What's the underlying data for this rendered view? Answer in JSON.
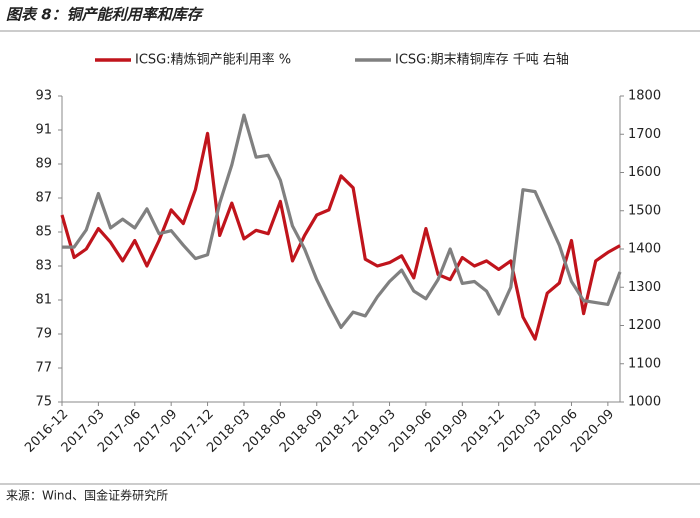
{
  "chart_data": {
    "type": "line",
    "title": "图表 8：铜产能利用率和库存",
    "source": "来源：Wind、国金证券研究所",
    "categories": [
      "2016-12",
      null,
      null,
      "2017-03",
      null,
      null,
      "2017-06",
      null,
      null,
      "2017-09",
      null,
      null,
      "2017-12",
      null,
      null,
      "2018-03",
      null,
      null,
      "2018-06",
      null,
      null,
      "2018-09",
      null,
      null,
      "2018-12",
      null,
      null,
      "2019-03",
      null,
      null,
      "2019-06",
      null,
      null,
      "2019-09",
      null,
      null,
      "2019-12",
      null,
      null,
      "2020-03",
      null,
      null,
      "2020-06",
      null,
      null,
      "2020-09",
      null
    ],
    "series": [
      {
        "name": "ICSG:精炼铜产能利用率 %",
        "color": "#c0141c",
        "values": [
          86.0,
          83.5,
          84.0,
          85.2,
          84.4,
          83.3,
          84.5,
          83.0,
          84.5,
          86.3,
          85.5,
          87.5,
          90.8,
          84.8,
          86.7,
          84.6,
          85.1,
          84.9,
          86.8,
          83.3,
          84.8,
          86.0,
          86.3,
          88.3,
          87.6,
          83.4,
          83.0,
          83.2,
          83.6,
          82.3,
          85.2,
          82.5,
          82.2,
          83.5,
          83.0,
          83.3,
          82.8,
          83.3,
          80.0,
          78.7,
          81.4,
          82.0,
          84.5,
          80.2,
          83.3,
          83.8,
          84.2
        ]
      },
      {
        "name": "ICSG:期末精铜库存 千吨 右轴",
        "color": "#808080",
        "axis": "y2",
        "values": [
          1405,
          1405,
          1450,
          1545,
          1455,
          1478,
          1455,
          1505,
          1440,
          1448,
          1410,
          1375,
          1385,
          1520,
          1620,
          1750,
          1640,
          1645,
          1580,
          1460,
          1400,
          1320,
          1255,
          1195,
          1235,
          1225,
          1275,
          1315,
          1345,
          1290,
          1270,
          1320,
          1400,
          1310,
          1315,
          1290,
          1230,
          1300,
          1555,
          1550,
          1480,
          1410,
          1315,
          1265,
          1260,
          1255,
          1340
        ]
      }
    ],
    "ylim": [
      75,
      93
    ],
    "yticks": [
      75,
      77,
      79,
      81,
      83,
      85,
      87,
      89,
      91,
      93
    ],
    "y2lim": [
      1000,
      1800
    ],
    "y2ticks": [
      1000,
      1100,
      1200,
      1300,
      1400,
      1500,
      1600,
      1700,
      1800
    ]
  }
}
